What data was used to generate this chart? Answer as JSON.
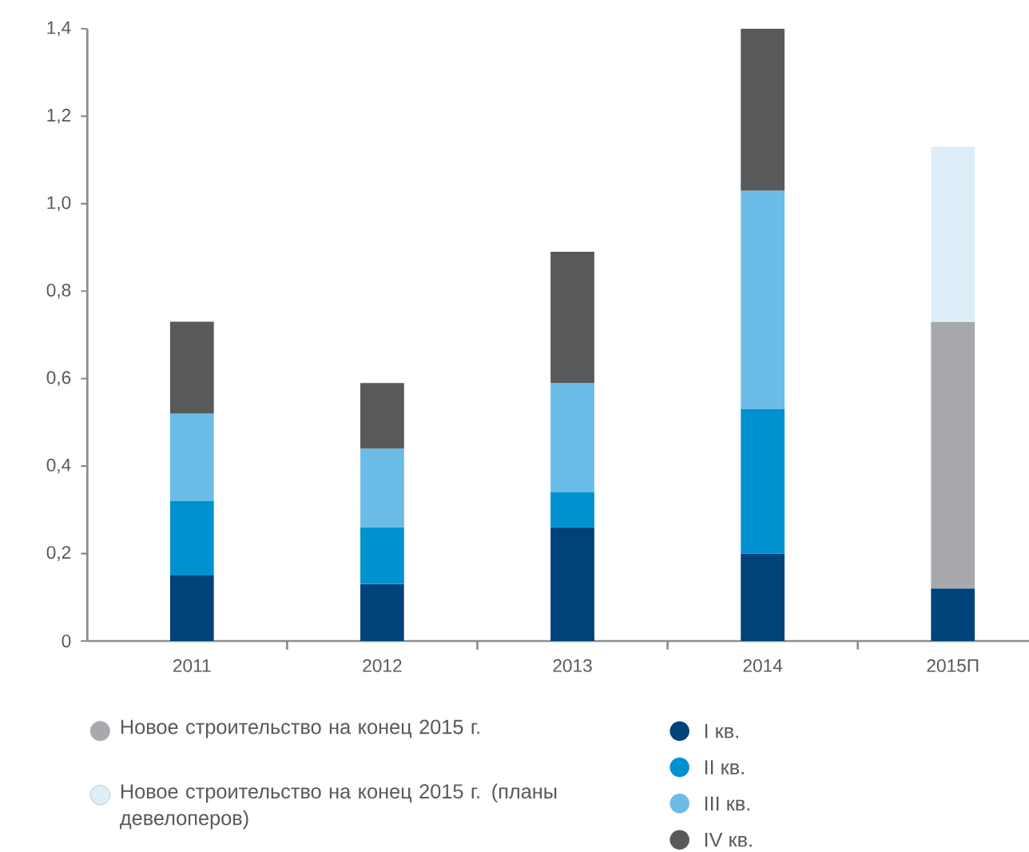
{
  "chart_data": {
    "type": "bar",
    "stacked": true,
    "categories": [
      "2011",
      "2012",
      "2013",
      "2014",
      "2015П"
    ],
    "series": [
      {
        "name": "I кв.",
        "color": "#00427a",
        "values": [
          0.15,
          0.13,
          0.26,
          0.2,
          0.12
        ]
      },
      {
        "name": "II кв.",
        "color": "#0091d0",
        "values": [
          0.17,
          0.13,
          0.08,
          0.33,
          null
        ]
      },
      {
        "name": "III кв.",
        "color": "#6bbce6",
        "values": [
          0.2,
          0.18,
          0.25,
          0.5,
          null
        ]
      },
      {
        "name": "IV кв.",
        "color": "#58595b",
        "values": [
          0.21,
          0.15,
          0.3,
          0.37,
          null
        ]
      },
      {
        "name": "Новое строительство на конец 2015 г.",
        "color": "#a7a9ac",
        "values": [
          null,
          null,
          null,
          null,
          0.61
        ]
      },
      {
        "name": "Новое строительство на конец 2015 г. (планы девелоперов)",
        "color": "#ddeef8",
        "values": [
          null,
          null,
          null,
          null,
          0.4
        ]
      }
    ],
    "ylim": [
      0,
      1.4
    ],
    "yticks": [
      0,
      {
        "value": 0.2,
        "label": "0,2"
      },
      {
        "value": 0.4,
        "label": "0,4"
      },
      {
        "value": 0.6,
        "label": "0,6"
      },
      {
        "value": 0.8,
        "label": "0,8"
      },
      {
        "value": 1.0,
        "label": "1,0"
      },
      {
        "value": 1.2,
        "label": "1,2"
      },
      {
        "value": 1.4,
        "label": "1,4"
      }
    ],
    "grid": false,
    "legend": "bottom"
  }
}
